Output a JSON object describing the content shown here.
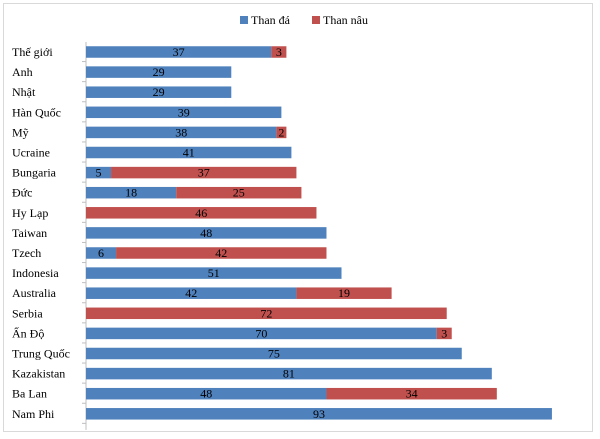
{
  "chart_data": {
    "type": "bar",
    "orientation": "horizontal",
    "stacked": true,
    "categories": [
      "Thế giới",
      "Anh",
      "Nhật",
      "Hàn Quốc",
      "Mỹ",
      "Ucraine",
      "Bungaria",
      "Đức",
      "Hy Lạp",
      "Taiwan",
      "Tzech",
      "Indonesia",
      "Australia",
      "Serbia",
      "Ấn Độ",
      "Trung Quốc",
      "Kazakistan",
      "Ba Lan",
      "Nam Phi"
    ],
    "series": [
      {
        "name": "Than đá",
        "color": "#4f81bd",
        "values": [
          37,
          29,
          29,
          39,
          38,
          41,
          5,
          18,
          null,
          48,
          6,
          51,
          42,
          null,
          70,
          75,
          81,
          48,
          93
        ]
      },
      {
        "name": "Than nâu",
        "color": "#c0504d",
        "values": [
          3,
          null,
          null,
          null,
          2,
          null,
          37,
          25,
          46,
          null,
          42,
          null,
          19,
          72,
          3,
          null,
          null,
          34,
          null
        ]
      }
    ],
    "xlim": [
      0,
      100
    ],
    "grid": false,
    "legend_position": "top"
  }
}
